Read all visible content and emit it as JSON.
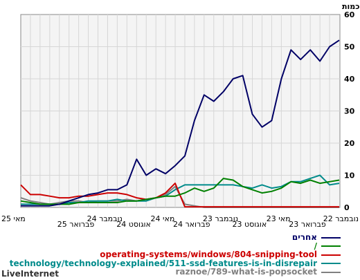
{
  "chart_data": {
    "type": "line",
    "ylabel": "כמות",
    "ylim": [
      0,
      60
    ],
    "yticks": [
      0,
      10,
      20,
      30,
      40,
      50,
      60
    ],
    "x_tick_labels": [
      "נובמבר 22",
      "פברואר 23",
      "מאי 23",
      "אוגוסט 23",
      "נובמבר 23",
      "פברואר 24",
      "מאי 24",
      "אוגוסט 24",
      "נובמבר 24",
      "פברואר 25",
      "מאי 25"
    ],
    "x_count": 34,
    "series": [
      {
        "name": "אחרים",
        "color": "#000066",
        "values": [
          52,
          50,
          45.5,
          49,
          46,
          49,
          40,
          27,
          25,
          29,
          41,
          40,
          36,
          33,
          35,
          27,
          16,
          13,
          10.5,
          12,
          10,
          15,
          7,
          5.5,
          5.5,
          4.5,
          4,
          3,
          2,
          1,
          0.5,
          0.5,
          0.5,
          0.5
        ]
      },
      {
        "name": "/",
        "color": "#008000",
        "values": [
          8.5,
          8,
          7.5,
          8.5,
          7.5,
          8,
          6,
          5,
          4.5,
          5.5,
          6.5,
          8.5,
          9,
          6,
          5,
          6,
          4.5,
          3.5,
          3.5,
          3,
          2.5,
          2,
          2,
          1.5,
          1.5,
          1.5,
          1.5,
          1.5,
          1,
          1,
          1,
          1,
          1.5,
          2
        ]
      },
      {
        "name": "operating-systems/windows/804-snipping-tool",
        "color": "#cc0000",
        "values": [
          0.2,
          0.2,
          0.2,
          0.2,
          0.2,
          0.2,
          0.2,
          0.2,
          0.2,
          0.2,
          0.2,
          0.2,
          0.2,
          0.2,
          0.2,
          0.2,
          0.2,
          7.5,
          4.5,
          3,
          2.5,
          3,
          4,
          4.5,
          4.5,
          4,
          3.5,
          3.5,
          3,
          3,
          3.5,
          4,
          4,
          7
        ]
      },
      {
        "name": "technology/technology-explained/511-ssd-features-is-in-disrepair",
        "color": "#008b8b",
        "values": [
          7.5,
          7,
          10,
          9,
          8,
          8,
          6.5,
          6,
          7,
          6,
          6.5,
          7,
          7,
          7,
          7,
          7,
          7,
          5.5,
          3.5,
          3,
          2,
          2,
          2,
          2.5,
          2,
          2,
          2,
          1.5,
          1.5,
          1,
          1,
          1,
          1,
          1
        ]
      },
      {
        "name": "raznoe/789-what-is-popsocket",
        "color": "#808080",
        "values": [
          0,
          0,
          0,
          0,
          0,
          0,
          0,
          0,
          0,
          0,
          0,
          0,
          0,
          0,
          0,
          0.5,
          1,
          6.5,
          4,
          3,
          2.5,
          2,
          2.5,
          2,
          2,
          2,
          1.5,
          2,
          2,
          1.5,
          1,
          1.5,
          2,
          3
        ]
      }
    ]
  },
  "brand": "LiveInternet"
}
